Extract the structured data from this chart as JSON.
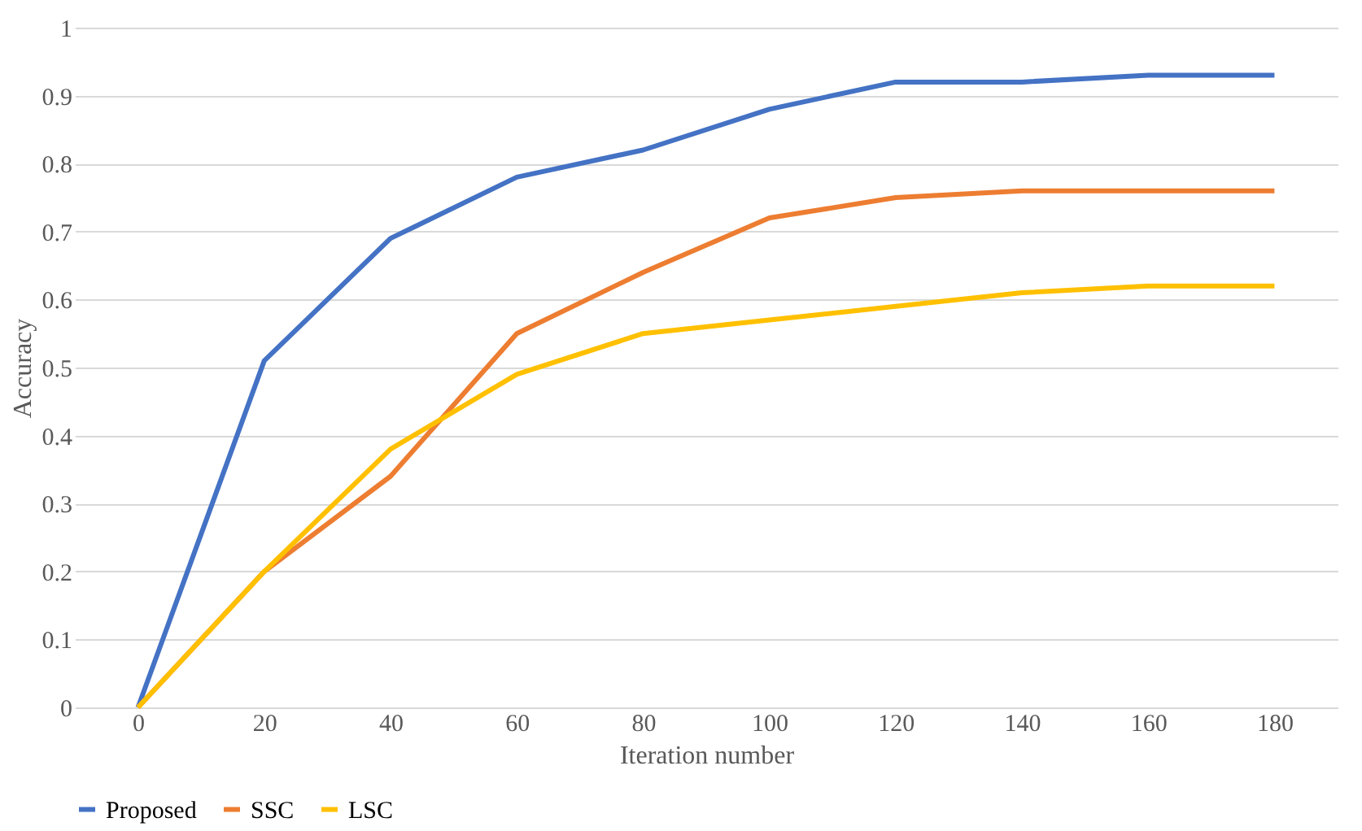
{
  "chart_data": {
    "type": "line",
    "xlabel": "Iteration number",
    "ylabel": "Accuracy",
    "categories": [
      "0",
      "20",
      "40",
      "60",
      "80",
      "100",
      "120",
      "140",
      "160",
      "180"
    ],
    "series": [
      {
        "name": "Proposed",
        "color": "#4472c4",
        "values": [
          0,
          0.51,
          0.69,
          0.78,
          0.82,
          0.88,
          0.92,
          0.92,
          0.93,
          0.93
        ]
      },
      {
        "name": "SSC",
        "color": "#ed7d31",
        "values": [
          0,
          0.2,
          0.34,
          0.55,
          0.64,
          0.72,
          0.75,
          0.76,
          0.76,
          0.76
        ]
      },
      {
        "name": "LSC",
        "color": "#ffc000",
        "values": [
          0,
          0.2,
          0.38,
          0.49,
          0.55,
          0.57,
          0.59,
          0.61,
          0.62,
          0.62
        ]
      }
    ],
    "ylim": [
      0,
      1
    ],
    "yticks": [
      0,
      0.1,
      0.2,
      0.3,
      0.4,
      0.5,
      0.6,
      0.7,
      0.8,
      0.9,
      1
    ],
    "grid": "y",
    "legend": "bottom",
    "marker": "none",
    "line_style": "solid"
  }
}
